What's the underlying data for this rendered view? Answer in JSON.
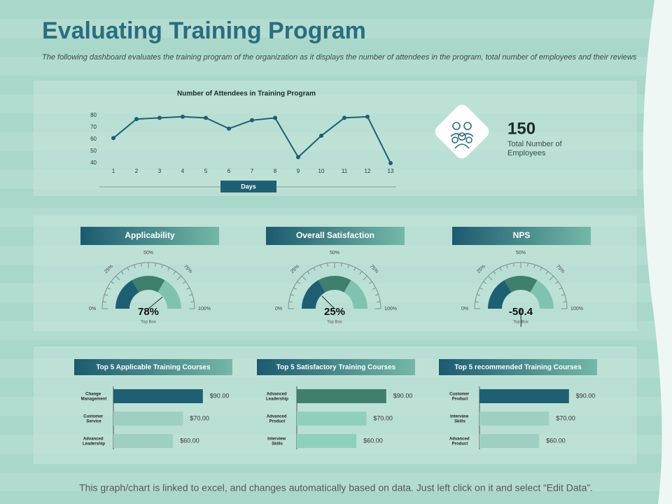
{
  "header": {
    "title": "Evaluating Training Program",
    "subtitle": "The following dashboard evaluates the training program of the organization as it displays the number of attendees in the program, total number of employees and their reviews"
  },
  "kpi": {
    "value": 150,
    "label": "Total Number of Employees"
  },
  "chart_data": [
    {
      "type": "line",
      "title": "Number of Attendees in Training Program",
      "x_label": "Days",
      "x": [
        1,
        2,
        3,
        4,
        5,
        6,
        7,
        8,
        9,
        10,
        11,
        12,
        13
      ],
      "xlim": [
        1,
        13
      ],
      "xticks": [
        1,
        2,
        3,
        4,
        5,
        6,
        7,
        8,
        9,
        10,
        11,
        12,
        13
      ],
      "values": [
        61,
        77,
        78,
        79,
        78,
        69,
        76,
        78,
        45,
        63,
        78,
        79,
        40
      ],
      "color": "#1f5f73",
      "ylim": [
        40,
        80
      ],
      "yticks": [
        40,
        50,
        60,
        70,
        80
      ]
    },
    {
      "type": "gauge",
      "title": "Applicability",
      "value": 78,
      "value_label": "78%",
      "sublabel": "Top Box",
      "range": [
        0,
        100
      ],
      "ticks": [
        {
          "value": 0,
          "label": "0%"
        },
        {
          "value": 25,
          "label": "25%"
        },
        {
          "value": 50,
          "label": "50%"
        },
        {
          "value": 75,
          "label": "75%"
        },
        {
          "value": 100,
          "label": "100%"
        }
      ]
    },
    {
      "type": "gauge",
      "title": "Overall Satisfaction",
      "value": 25,
      "value_label": "25%",
      "sublabel": "Top Box",
      "range": [
        0,
        100
      ],
      "ticks": [
        {
          "value": 0,
          "label": "0%"
        },
        {
          "value": 25,
          "label": "25%"
        },
        {
          "value": 50,
          "label": "50%"
        },
        {
          "value": 75,
          "label": "75%"
        },
        {
          "value": 100,
          "label": "100%"
        }
      ]
    },
    {
      "type": "gauge",
      "title": "NPS",
      "value": -50.4,
      "sublabel": "Top Box",
      "range": [
        0,
        100
      ],
      "ticks": [
        {
          "value": 0,
          "label": "0%"
        },
        {
          "value": 25,
          "label": "25%"
        },
        {
          "value": 50,
          "label": "50%"
        },
        {
          "value": 75,
          "label": "75%"
        },
        {
          "value": 100,
          "label": "100%"
        }
      ]
    },
    {
      "type": "hbar",
      "title": "Top 5 Applicable Training Courses",
      "categories": [
        "Change Management",
        "Customer Service",
        "Advanced Leadership"
      ],
      "values": [
        90,
        70,
        60
      ],
      "value_labels": [
        "$90.00",
        "$70.00",
        "$60.00"
      ],
      "colors": [
        "#1f5f73",
        "#9fcfc3",
        "#9fcfc3"
      ]
    },
    {
      "type": "hbar",
      "title": "Top 5 Satisfactory Training Courses",
      "categories": [
        "Advanced Leadership",
        "Advanced Product",
        "Interview Skills"
      ],
      "values": [
        90,
        70,
        60
      ],
      "value_labels": [
        "$90.00",
        "$70.00",
        "$60.00"
      ],
      "colors": [
        "#3f7f6d",
        "#8fd0bd",
        "#8fd0bd"
      ]
    },
    {
      "type": "hbar",
      "title": "Top 5 recommended Training Courses",
      "categories": [
        "Customer Product",
        "Interview Skills",
        "Advanced Product"
      ],
      "values": [
        90,
        70,
        60
      ],
      "value_labels": [
        "$90.00",
        "$70.00",
        "$60.00"
      ],
      "colors": [
        "#1f5f73",
        "#9fcfc3",
        "#9fcfc3"
      ]
    }
  ],
  "footer": "This graph/chart is linked to excel, and changes automatically based on data. Just left click on it and select “Edit Data”."
}
